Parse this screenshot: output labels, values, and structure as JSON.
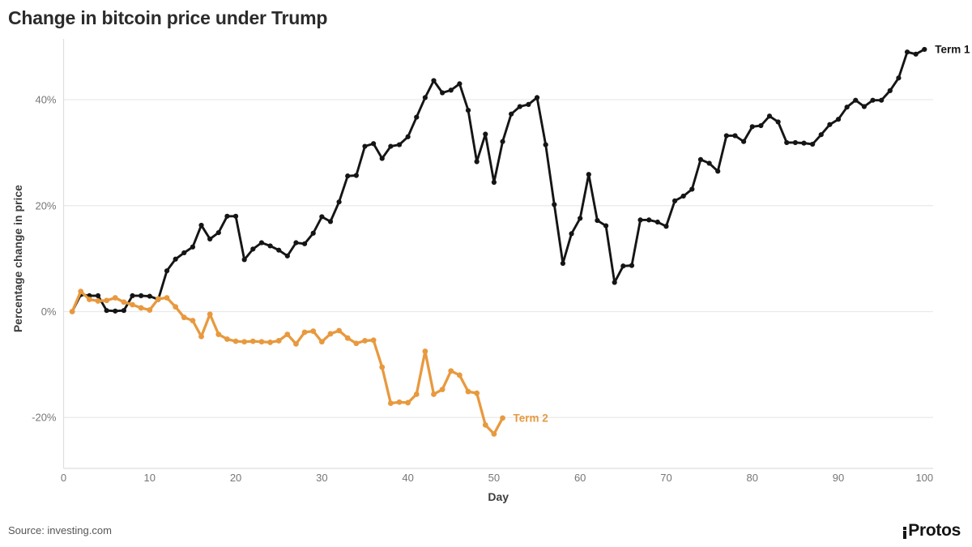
{
  "title": "Change in bitcoin price under Trump",
  "source": "Source: investing.com",
  "brand": "Protos",
  "colors": {
    "term1": "#151515",
    "term2": "#E8993E",
    "grid": "#e9e9e9",
    "axis_line": "#dedede",
    "tick_text": "#767676",
    "axis_title_text": "#3d3d3d",
    "title_text": "#2b2b2b"
  },
  "chart_data": {
    "type": "line",
    "title": "Change in bitcoin price under Trump",
    "xlabel": "Day",
    "ylabel": "Percentage change in price",
    "grid": true,
    "legend_position": "line-end-labels",
    "xlim": [
      0,
      101
    ],
    "ylim": [
      -27,
      52
    ],
    "x_ticks": [
      0,
      10,
      20,
      30,
      40,
      50,
      60,
      70,
      80,
      90,
      100
    ],
    "y_ticks": [
      {
        "value": -20,
        "label": "-20%"
      },
      {
        "value": 0,
        "label": "0%"
      },
      {
        "value": 20,
        "label": "20%"
      },
      {
        "value": 40,
        "label": "40%"
      }
    ],
    "series": [
      {
        "name": "Term 1",
        "color": "#151515",
        "x": [
          1,
          2,
          3,
          4,
          5,
          6,
          7,
          8,
          9,
          10,
          11,
          12,
          13,
          14,
          15,
          16,
          17,
          18,
          19,
          20,
          21,
          22,
          23,
          24,
          25,
          26,
          27,
          28,
          29,
          30,
          31,
          32,
          33,
          34,
          35,
          36,
          37,
          38,
          39,
          40,
          41,
          42,
          43,
          44,
          45,
          46,
          47,
          48,
          49,
          50,
          51,
          52,
          53,
          54,
          55,
          56,
          57,
          58,
          59,
          60,
          61,
          62,
          63,
          64,
          65,
          66,
          67,
          68,
          69,
          70,
          71,
          72,
          73,
          74,
          75,
          76,
          77,
          78,
          79,
          80,
          81,
          82,
          83,
          84,
          85,
          86,
          87,
          88,
          89,
          90,
          91,
          92,
          93,
          94,
          95,
          96,
          97,
          98,
          99,
          100
        ],
        "values": [
          0,
          3.2,
          3.0,
          3.0,
          0.2,
          0.1,
          0.2,
          3.0,
          3.0,
          2.9,
          2.3,
          7.7,
          9.9,
          11.1,
          12.2,
          16.3,
          13.7,
          14.9,
          18.0,
          18.0,
          9.8,
          11.8,
          13.0,
          12.4,
          11.6,
          10.5,
          13.0,
          12.8,
          14.8,
          17.9,
          17.0,
          20.7,
          25.6,
          25.7,
          31.2,
          31.7,
          28.9,
          31.2,
          31.5,
          33.0,
          36.7,
          40.4,
          43.6,
          41.3,
          41.8,
          43.0,
          38.0,
          28.3,
          33.5,
          24.4,
          32.1,
          37.3,
          38.7,
          39.1,
          40.4,
          31.5,
          20.2,
          9.1,
          14.7,
          17.6,
          25.9,
          17.2,
          16.2,
          5.5,
          8.6,
          8.7,
          17.3,
          17.3,
          16.9,
          16.1,
          20.9,
          21.8,
          23.1,
          28.7,
          28.0,
          26.5,
          33.2,
          33.2,
          32.1,
          34.9,
          35.1,
          36.9,
          35.8,
          31.9,
          31.9,
          31.8,
          31.6,
          33.4,
          35.3,
          36.3,
          38.6,
          39.9,
          38.7,
          39.9,
          39.9,
          41.7,
          44.1,
          49.0,
          48.6,
          49.5
        ]
      },
      {
        "name": "Term 2",
        "color": "#E8993E",
        "x": [
          1,
          2,
          3,
          4,
          5,
          6,
          7,
          8,
          9,
          10,
          11,
          12,
          13,
          14,
          15,
          16,
          17,
          18,
          19,
          20,
          21,
          22,
          23,
          24,
          25,
          26,
          27,
          28,
          29,
          30,
          31,
          32,
          33,
          34,
          35,
          36,
          37,
          38,
          39,
          40,
          41,
          42,
          43,
          44,
          45,
          46,
          47,
          48,
          49,
          50,
          51
        ],
        "values": [
          0,
          3.8,
          2.3,
          2.0,
          2.1,
          2.6,
          1.8,
          1.3,
          0.7,
          0.3,
          2.4,
          2.6,
          0.9,
          -1.1,
          -1.7,
          -4.7,
          -0.5,
          -4.3,
          -5.2,
          -5.6,
          -5.7,
          -5.6,
          -5.7,
          -5.8,
          -5.5,
          -4.3,
          -6.1,
          -3.9,
          -3.7,
          -5.7,
          -4.2,
          -3.6,
          -5.0,
          -6.0,
          -5.5,
          -5.4,
          -10.5,
          -17.3,
          -17.1,
          -17.2,
          -15.6,
          -7.5,
          -15.6,
          -14.7,
          -11.2,
          -12.0,
          -15.1,
          -15.4,
          -21.4,
          -23.1,
          -20.1
        ]
      }
    ]
  }
}
